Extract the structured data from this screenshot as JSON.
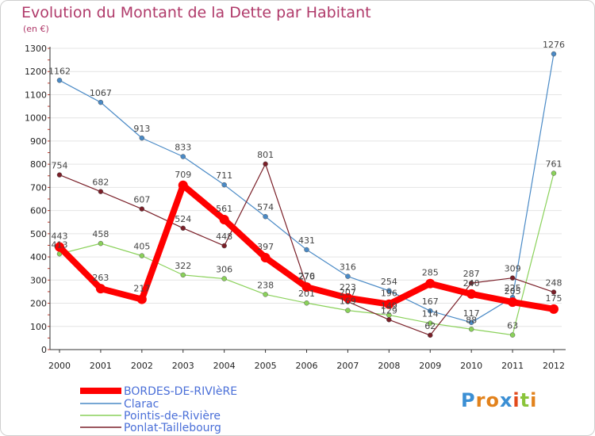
{
  "chart_data": {
    "type": "line",
    "title": "Evolution du Montant de la Dette par Habitant",
    "subtitle": "(en €)",
    "x": [
      "2000",
      "2001",
      "2002",
      "2003",
      "2004",
      "2005",
      "2006",
      "2007",
      "2008",
      "2009",
      "2010",
      "2011",
      "2012"
    ],
    "yticks": [
      0,
      100,
      200,
      300,
      400,
      500,
      600,
      700,
      800,
      900,
      1000,
      1100,
      1200,
      1300
    ],
    "ylim": [
      0,
      1300
    ],
    "grid": "horizontal",
    "legend_position": "bottom-left",
    "series": [
      {
        "name": "BORDES-DE-RIVIèRE",
        "color": "#ff0000",
        "values": [
          443,
          263,
          217,
          709,
          561,
          397,
          270,
          223,
          196,
          285,
          240,
          205,
          175
        ],
        "labels": [
          "443",
          "263",
          "217",
          "709",
          "561",
          "397",
          "270",
          "223",
          "196",
          "285",
          "240",
          "205",
          "175"
        ]
      },
      {
        "name": "Clarac",
        "color": "#4a8ac6",
        "values": [
          1162,
          1067,
          913,
          833,
          711,
          574,
          431,
          316,
          254,
          167,
          117,
          225,
          1276
        ],
        "labels": [
          "1162",
          "1067",
          "913",
          "833",
          "711",
          "574",
          "431",
          "316",
          "254",
          "167",
          "117",
          "225",
          "1276"
        ]
      },
      {
        "name": "Pointis-de-Rivière",
        "color": "#8ad15a",
        "values": [
          413,
          458,
          405,
          322,
          306,
          238,
          201,
          169,
          149,
          114,
          88,
          63,
          761
        ],
        "labels": [
          "413",
          "458",
          "405",
          "322",
          "306",
          "238",
          "201",
          "169",
          "149",
          "114",
          "88",
          "63",
          "761"
        ]
      },
      {
        "name": "Ponlat-Taillebourg",
        "color": "#7a1f28",
        "values": [
          754,
          682,
          607,
          524,
          448,
          801,
          276,
          207,
          129,
          62,
          287,
          309,
          248
        ],
        "labels": [
          "754",
          "682",
          "607",
          "524",
          "448",
          "801",
          "276",
          "207",
          "129",
          "62",
          "287",
          "309",
          "248"
        ]
      }
    ]
  },
  "logo": {
    "text": "Proxiti"
  }
}
